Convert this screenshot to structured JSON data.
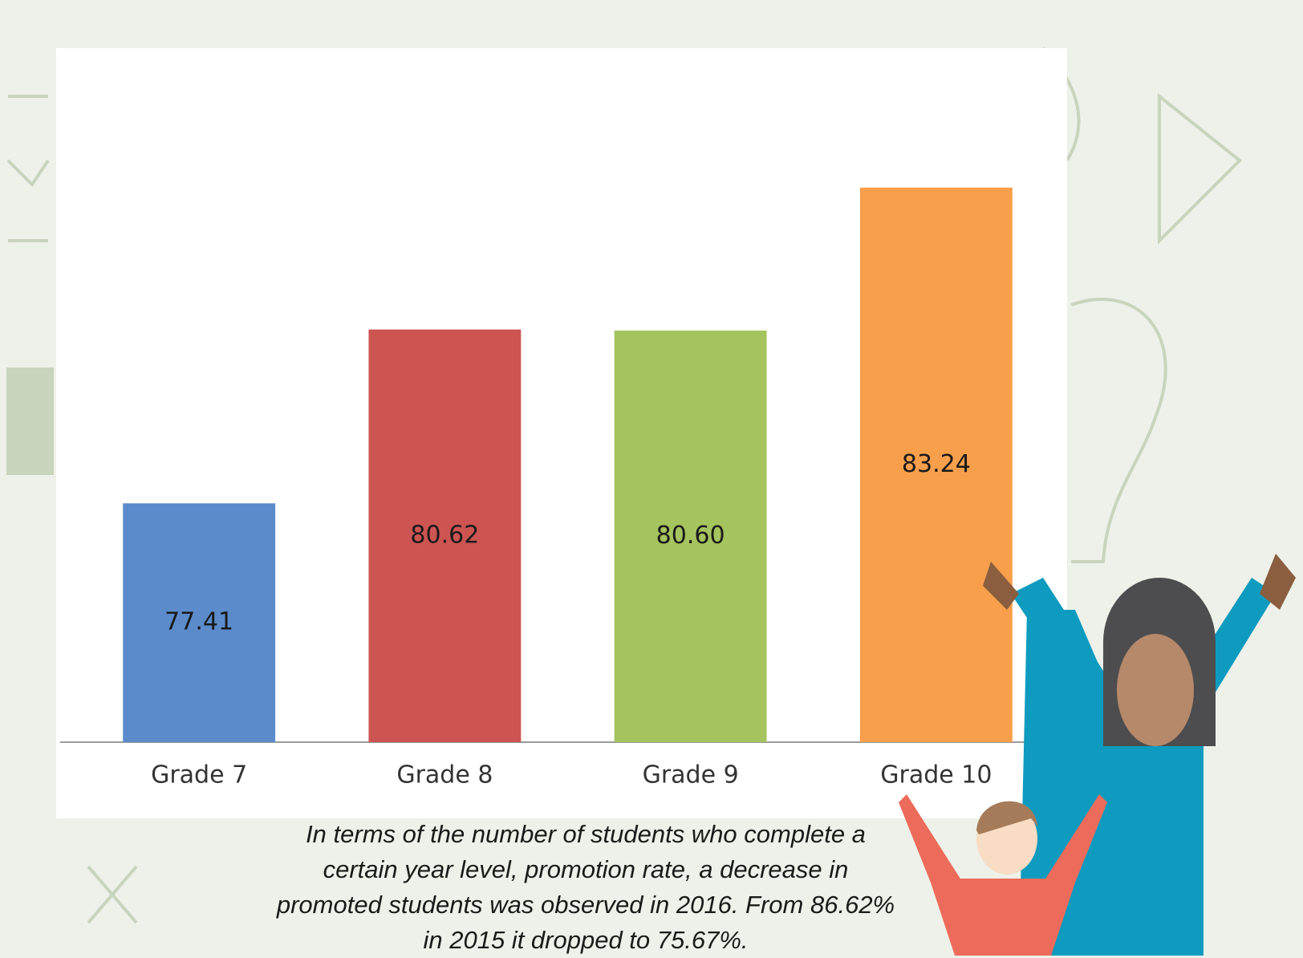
{
  "chart_data": {
    "type": "bar",
    "categories": [
      "Grade 7",
      "Grade 8",
      "Grade 9",
      "Grade 10"
    ],
    "values": [
      77.41,
      80.62,
      80.6,
      83.24
    ],
    "value_labels": [
      "77.41",
      "80.62",
      "80.60",
      "83.24"
    ],
    "colors": [
      "#5b8bcb",
      "#cc5552",
      "#a5c45e",
      "#f89f4c"
    ],
    "ylim": [
      73,
      85
    ],
    "annotation": "In terms of the number of students who complete a certain year level, promotion rate, a decrease in promoted students was observed in 2016. From 86.62% in 2015 it dropped to 75.67%."
  }
}
